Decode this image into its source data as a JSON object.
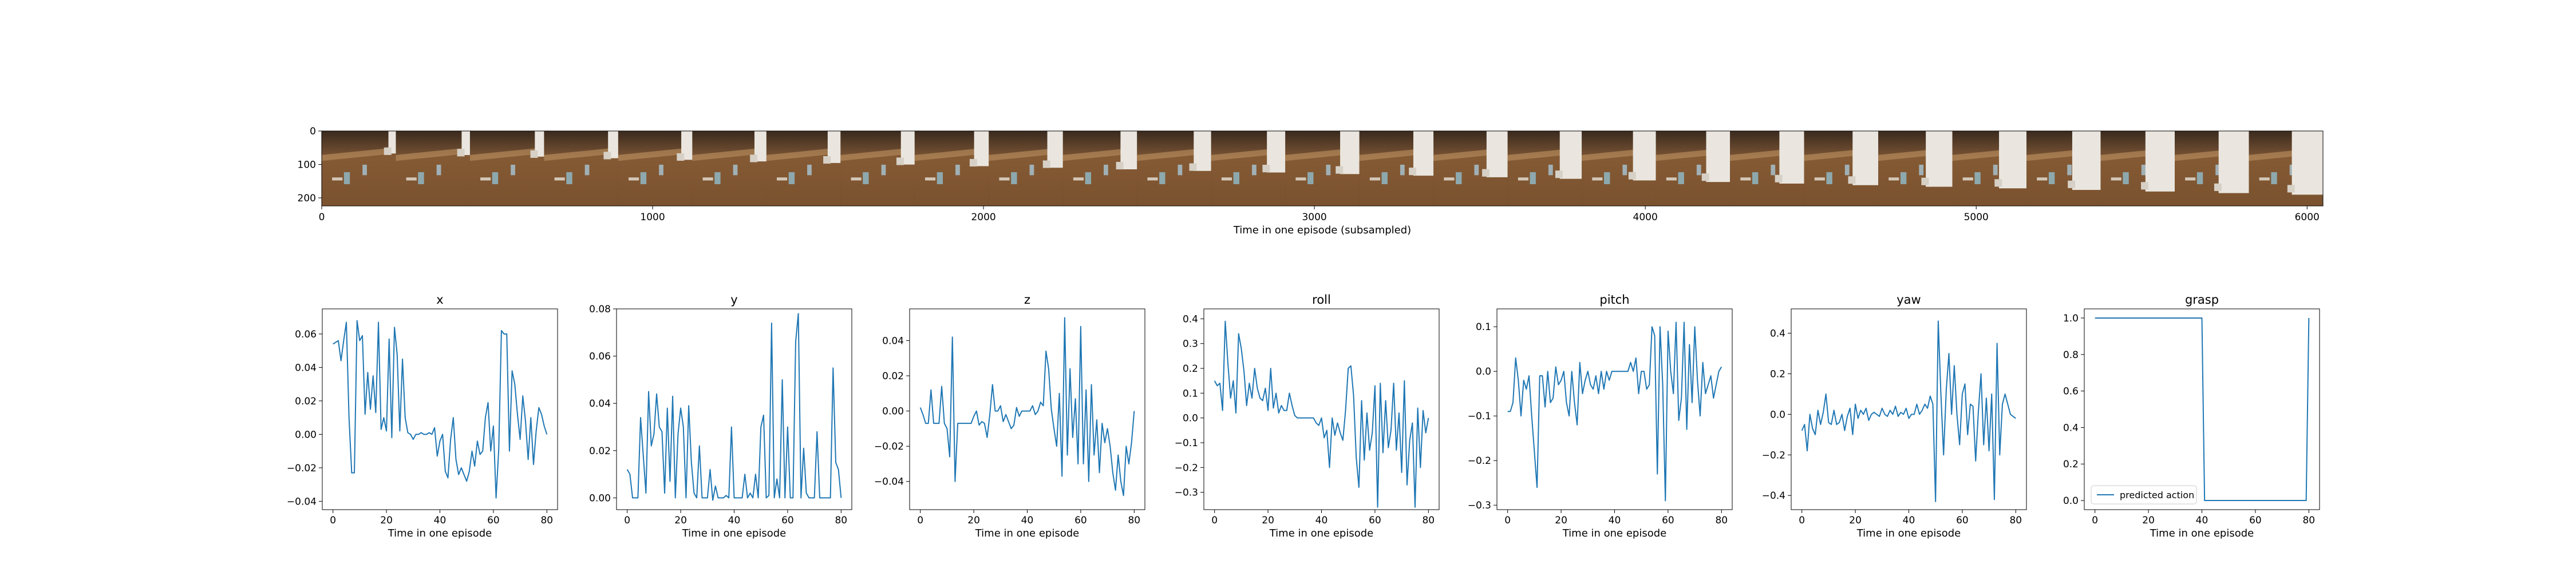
{
  "filmstrip": {
    "xlabel": "Time in one episode (subsampled)",
    "x_ticks": [
      0,
      1000,
      2000,
      3000,
      4000,
      5000,
      6000
    ],
    "y_ticks": [
      0,
      100,
      200
    ],
    "xlim": [
      0,
      6048
    ],
    "ylim": [
      224,
      0
    ],
    "frame_count": 27,
    "frame_width": 224
  },
  "chart_data": [
    {
      "type": "line",
      "title": "x",
      "xlabel": "Time in one episode",
      "ylabel": "",
      "xlim": [
        -4,
        84
      ],
      "ylim": [
        -0.045,
        0.075
      ],
      "x_ticks": [
        0,
        20,
        40,
        60,
        80
      ],
      "y_ticks": [
        -0.04,
        -0.02,
        0.0,
        0.02,
        0.04,
        0.06
      ],
      "y_tick_labels": [
        "−0.04",
        "−0.02",
        "0.00",
        "0.02",
        "0.04",
        "0.06"
      ],
      "series": [
        {
          "color": "#1f77b4",
          "values": [
            0.054,
            0.055,
            0.056,
            0.044,
            0.056,
            0.067,
            0.01,
            -0.023,
            -0.023,
            0.068,
            0.056,
            0.059,
            0.012,
            0.037,
            0.015,
            0.035,
            0.013,
            0.067,
            0.003,
            0.01,
            0.002,
            0.057,
            -0.002,
            0.064,
            0.048,
            0.002,
            0.045,
            0.01,
            0.001,
            0.0,
            -0.003,
            0.0,
            0.0,
            0.001,
            0.0,
            0.0,
            0.001,
            0.0,
            0.004,
            -0.013,
            -0.004,
            0.0,
            -0.022,
            -0.026,
            -0.003,
            0.01,
            -0.015,
            -0.024,
            -0.02,
            -0.024,
            -0.028,
            -0.022,
            -0.01,
            -0.019,
            -0.004,
            -0.012,
            -0.01,
            0.01,
            0.019,
            -0.01,
            0.005,
            -0.038,
            -0.009,
            0.062,
            0.06,
            0.06,
            -0.01,
            0.038,
            0.03,
            0.012,
            -0.003,
            0.023,
            0.008,
            -0.015,
            0.01,
            -0.018,
            0.002,
            0.016,
            0.012,
            0.005,
            0.0
          ]
        }
      ]
    },
    {
      "type": "line",
      "title": "y",
      "xlabel": "Time in one episode",
      "ylabel": "",
      "xlim": [
        -4,
        84
      ],
      "ylim": [
        -0.005,
        0.08
      ],
      "x_ticks": [
        0,
        20,
        40,
        60,
        80
      ],
      "y_ticks": [
        0.0,
        0.02,
        0.04,
        0.06,
        0.08
      ],
      "y_tick_labels": [
        "0.00",
        "0.02",
        "0.04",
        "0.06",
        "0.08"
      ],
      "series": [
        {
          "color": "#1f77b4",
          "values": [
            0.012,
            0.01,
            0.0,
            0.0,
            0.0,
            0.034,
            0.018,
            0.002,
            0.045,
            0.022,
            0.027,
            0.044,
            0.03,
            0.028,
            0.002,
            0.038,
            0.007,
            0.043,
            0.0,
            0.027,
            0.038,
            0.03,
            0.0,
            0.039,
            0.015,
            0.002,
            0.0,
            0.022,
            0.0,
            0.0,
            0.0,
            0.012,
            -0.001,
            0.005,
            0.0,
            0.0,
            0.0,
            0.001,
            0.0,
            0.03,
            0.0,
            0.0,
            0.0,
            0.0,
            0.01,
            0.0,
            0.002,
            0.0,
            0.01,
            0.0,
            0.03,
            0.035,
            0.0,
            0.001,
            0.074,
            0.0,
            0.008,
            0.0,
            0.05,
            0.0,
            0.03,
            0.0,
            0.0,
            0.066,
            0.078,
            0.0,
            0.021,
            0.002,
            0.0,
            0.0,
            0.0,
            0.028,
            0.0,
            0.0,
            0.0,
            0.0,
            0.0,
            0.055,
            0.015,
            0.012,
            0.0
          ]
        }
      ]
    },
    {
      "type": "line",
      "title": "z",
      "xlabel": "Time in one episode",
      "ylabel": "",
      "xlim": [
        -4,
        84
      ],
      "ylim": [
        -0.056,
        0.058
      ],
      "x_ticks": [
        0,
        20,
        40,
        60,
        80
      ],
      "y_ticks": [
        -0.04,
        -0.02,
        0.0,
        0.02,
        0.04
      ],
      "y_tick_labels": [
        "−0.04",
        "−0.02",
        "0.00",
        "0.02",
        "0.04"
      ],
      "series": [
        {
          "color": "#1f77b4",
          "values": [
            0.002,
            -0.002,
            -0.007,
            -0.007,
            0.012,
            -0.007,
            -0.007,
            -0.007,
            0.014,
            -0.007,
            -0.01,
            -0.026,
            0.042,
            -0.04,
            -0.007,
            -0.007,
            -0.007,
            -0.007,
            -0.007,
            -0.007,
            -0.003,
            0.0,
            -0.008,
            -0.006,
            -0.007,
            -0.015,
            -0.002,
            0.015,
            0.0,
            0.0,
            0.003,
            -0.006,
            -0.002,
            -0.006,
            -0.01,
            -0.008,
            0.002,
            -0.003,
            0.0,
            0.0,
            0.0,
            0.0,
            0.003,
            -0.002,
            0.0,
            0.005,
            0.003,
            0.034,
            0.024,
            0.001,
            -0.01,
            -0.02,
            0.01,
            -0.037,
            0.053,
            -0.025,
            0.024,
            -0.015,
            0.007,
            -0.03,
            0.048,
            -0.03,
            0.012,
            -0.04,
            0.015,
            -0.025,
            -0.005,
            -0.035,
            -0.007,
            -0.018,
            -0.01,
            -0.02,
            -0.035,
            -0.045,
            -0.025,
            -0.04,
            -0.048,
            -0.02,
            -0.03,
            -0.018,
            0.0
          ]
        }
      ]
    },
    {
      "type": "line",
      "title": "roll",
      "xlabel": "Time in one episode",
      "ylabel": "",
      "xlim": [
        -4,
        84
      ],
      "ylim": [
        -0.37,
        0.44
      ],
      "x_ticks": [
        0,
        20,
        40,
        60,
        80
      ],
      "y_ticks": [
        -0.3,
        -0.2,
        -0.1,
        0.0,
        0.1,
        0.2,
        0.3,
        0.4
      ],
      "y_tick_labels": [
        "−0.3",
        "−0.2",
        "−0.1",
        "0.0",
        "0.1",
        "0.2",
        "0.3",
        "0.4"
      ],
      "series": [
        {
          "color": "#1f77b4",
          "values": [
            0.15,
            0.13,
            0.14,
            0.03,
            0.39,
            0.22,
            0.08,
            0.15,
            0.02,
            0.34,
            0.28,
            0.19,
            0.05,
            0.14,
            0.08,
            0.2,
            0.12,
            0.08,
            0.07,
            0.12,
            0.03,
            0.2,
            0.04,
            0.1,
            0.02,
            0.05,
            0.03,
            0.03,
            0.1,
            0.05,
            0.01,
            0.0,
            0.0,
            0.0,
            0.0,
            0.0,
            0.0,
            0.0,
            -0.02,
            -0.03,
            0.0,
            -0.08,
            -0.05,
            -0.2,
            0.0,
            -0.07,
            -0.02,
            -0.06,
            -0.09,
            0.03,
            0.2,
            0.21,
            0.09,
            -0.16,
            -0.28,
            0.07,
            -0.17,
            0.02,
            -0.13,
            -0.06,
            0.13,
            -0.36,
            0.14,
            -0.14,
            0.07,
            -0.12,
            -0.05,
            0.14,
            -0.13,
            0.02,
            -0.22,
            0.15,
            -0.27,
            -0.09,
            -0.02,
            -0.36,
            0.04,
            -0.2,
            0.03,
            -0.06,
            0.0
          ]
        }
      ]
    },
    {
      "type": "line",
      "title": "pitch",
      "xlabel": "Time in one episode",
      "ylabel": "",
      "xlim": [
        -4,
        84
      ],
      "ylim": [
        -0.31,
        0.14
      ],
      "x_ticks": [
        0,
        20,
        40,
        60,
        80
      ],
      "y_ticks": [
        -0.3,
        -0.2,
        -0.1,
        0.0,
        0.1
      ],
      "y_tick_labels": [
        "−0.3",
        "−0.2",
        "−0.1",
        "0.0",
        "0.1"
      ],
      "series": [
        {
          "color": "#1f77b4",
          "values": [
            -0.09,
            -0.09,
            -0.07,
            0.03,
            -0.02,
            -0.1,
            -0.02,
            -0.04,
            -0.01,
            -0.1,
            -0.18,
            -0.26,
            -0.01,
            -0.01,
            -0.08,
            0.0,
            -0.07,
            -0.06,
            0.01,
            -0.03,
            -0.02,
            0.0,
            -0.07,
            -0.1,
            0.0,
            -0.07,
            -0.12,
            0.02,
            -0.05,
            -0.02,
            0.0,
            -0.03,
            -0.04,
            -0.01,
            -0.05,
            0.0,
            -0.04,
            0.0,
            -0.02,
            0.0,
            0.0,
            0.0,
            0.0,
            0.0,
            0.0,
            0.0,
            0.02,
            0.0,
            0.03,
            -0.05,
            0.0,
            0.0,
            -0.04,
            -0.03,
            0.1,
            0.08,
            -0.23,
            0.1,
            -0.03,
            -0.29,
            0.09,
            0.0,
            -0.05,
            0.11,
            -0.11,
            -0.06,
            0.11,
            -0.13,
            0.06,
            -0.07,
            0.1,
            -0.02,
            -0.1,
            0.02,
            -0.05,
            -0.03,
            -0.01,
            -0.06,
            -0.03,
            0.0,
            0.01
          ]
        }
      ]
    },
    {
      "type": "line",
      "title": "yaw",
      "xlabel": "Time in one episode",
      "ylabel": "",
      "xlim": [
        -4,
        84
      ],
      "ylim": [
        -0.47,
        0.52
      ],
      "x_ticks": [
        0,
        20,
        40,
        60,
        80
      ],
      "y_ticks": [
        -0.4,
        -0.2,
        0.0,
        0.2,
        0.4
      ],
      "y_tick_labels": [
        "−0.4",
        "−0.2",
        "0.0",
        "0.2",
        "0.4"
      ],
      "series": [
        {
          "color": "#1f77b4",
          "values": [
            -0.08,
            -0.05,
            -0.18,
            0.0,
            -0.07,
            -0.1,
            0.02,
            -0.05,
            0.01,
            0.1,
            -0.04,
            -0.05,
            0.02,
            -0.05,
            -0.04,
            0.0,
            -0.08,
            -0.01,
            0.03,
            -0.1,
            0.05,
            -0.02,
            0.02,
            0.0,
            0.03,
            -0.03,
            0.0,
            0.01,
            0.0,
            -0.01,
            0.03,
            0.0,
            -0.01,
            0.02,
            0.0,
            0.04,
            -0.01,
            0.01,
            0.0,
            0.03,
            -0.02,
            0.0,
            0.0,
            0.05,
            0.0,
            0.02,
            0.05,
            0.03,
            0.09,
            0.05,
            -0.43,
            0.46,
            0.1,
            -0.2,
            0.12,
            0.3,
            0.0,
            0.24,
            0.0,
            -0.15,
            0.1,
            0.15,
            -0.1,
            0.05,
            0.04,
            -0.23,
            0.01,
            0.2,
            -0.15,
            0.08,
            -0.18,
            0.1,
            -0.42,
            0.35,
            -0.2,
            0.05,
            0.1,
            0.05,
            0.0,
            -0.01,
            -0.02
          ]
        }
      ]
    },
    {
      "type": "line",
      "title": "grasp",
      "xlabel": "Time in one episode",
      "ylabel": "",
      "xlim": [
        -4,
        84
      ],
      "ylim": [
        -0.05,
        1.05
      ],
      "x_ticks": [
        0,
        20,
        40,
        60,
        80
      ],
      "y_ticks": [
        0.0,
        0.2,
        0.4,
        0.6,
        0.8,
        1.0
      ],
      "y_tick_labels": [
        "0.0",
        "0.2",
        "0.4",
        "0.6",
        "0.8",
        "1.0"
      ],
      "legend": {
        "placement": "lower-left",
        "entries": [
          "predicted action"
        ]
      },
      "series": [
        {
          "name": "predicted action",
          "color": "#1f77b4",
          "values": [
            1,
            1,
            1,
            1,
            1,
            1,
            1,
            1,
            1,
            1,
            1,
            1,
            1,
            1,
            1,
            1,
            1,
            1,
            1,
            1,
            1,
            1,
            1,
            1,
            1,
            1,
            1,
            1,
            1,
            1,
            1,
            1,
            1,
            1,
            1,
            1,
            1,
            1,
            1,
            1,
            1,
            0,
            0,
            0,
            0,
            0,
            0,
            0,
            0,
            0,
            0,
            0,
            0,
            0,
            0,
            0,
            0,
            0,
            0,
            0,
            0,
            0,
            0,
            0,
            0,
            0,
            0,
            0,
            0,
            0,
            0,
            0,
            0,
            0,
            0,
            0,
            0,
            0,
            0,
            0,
            1
          ]
        }
      ]
    }
  ]
}
